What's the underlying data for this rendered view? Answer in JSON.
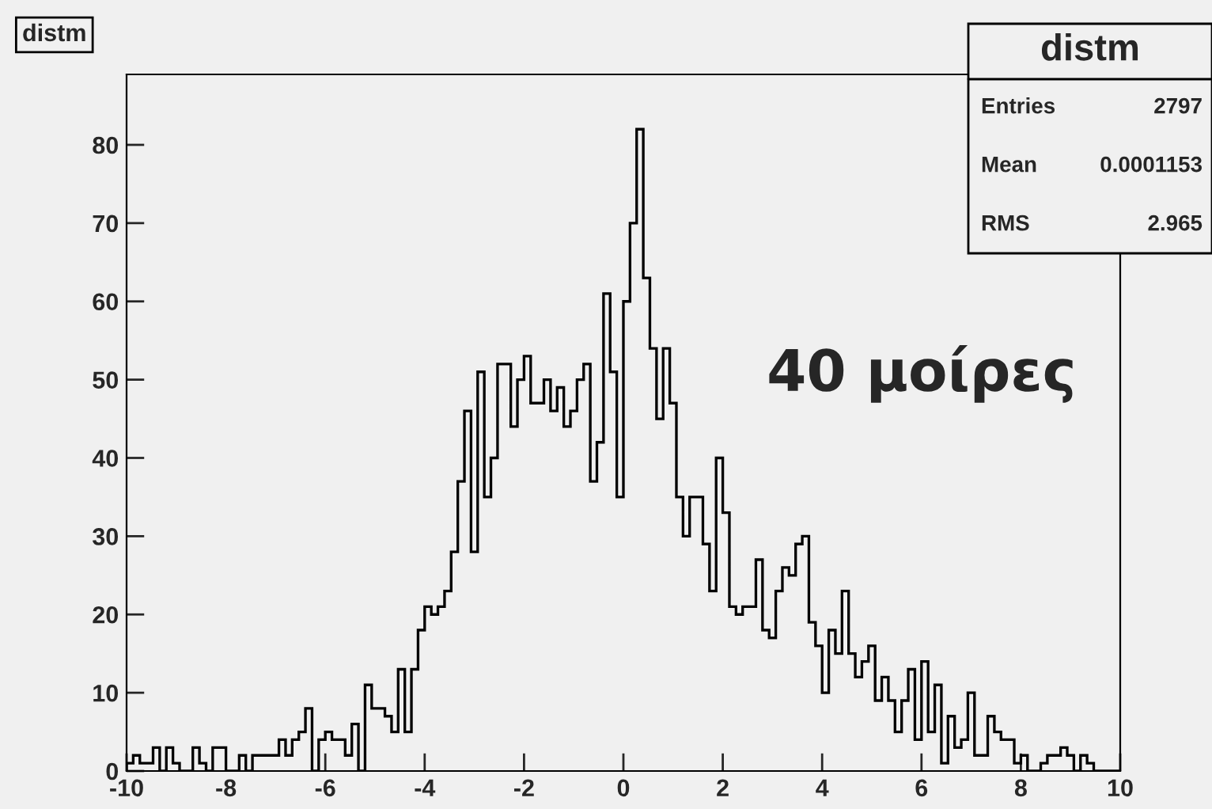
{
  "chart_data": {
    "type": "histogram",
    "title": "distm",
    "bins": [
      -10,
      -9.8667,
      -9.7333,
      -9.6,
      -9.4667,
      -9.3333,
      -9.2,
      -9.0667,
      -8.9333,
      -8.8,
      -8.6667,
      -8.5333,
      -8.4,
      -8.2667,
      -8.1333,
      -8,
      -7.8667,
      -7.7333,
      -7.6,
      -7.4667,
      -7.3333,
      -7.2,
      -7.0667,
      -6.9333,
      -6.8,
      -6.6667,
      -6.5333,
      -6.4,
      -6.2667,
      -6.1333,
      -6,
      -5.8667,
      -5.7333,
      -5.6,
      -5.4667,
      -5.3333,
      -5.2,
      -5.0667,
      -4.9333,
      -4.8,
      -4.6667,
      -4.5333,
      -4.4,
      -4.2667,
      -4.1333,
      -4,
      -3.8667,
      -3.7333,
      -3.6,
      -3.4667,
      -3.3333,
      -3.2,
      -3.0667,
      -2.9333,
      -2.8,
      -2.6667,
      -2.5333,
      -2.4,
      -2.2667,
      -2.1333,
      -2,
      -1.8667,
      -1.7333,
      -1.6,
      -1.4667,
      -1.3333,
      -1.2,
      -1.0667,
      -0.9333,
      -0.8,
      -0.6667,
      -0.5333,
      -0.4,
      -0.2667,
      -0.1333,
      0,
      0.1333,
      0.2667,
      0.4,
      0.5333,
      0.6667,
      0.8,
      0.9333,
      1.0667,
      1.2,
      1.3333,
      1.4667,
      1.6,
      1.7333,
      1.8667,
      2,
      2.1333,
      2.2667,
      2.4,
      2.5333,
      2.6667,
      2.8,
      2.9333,
      3.0667,
      3.2,
      3.3333,
      3.4667,
      3.6,
      3.7333,
      3.8667,
      4,
      4.1333,
      4.2667,
      4.4,
      4.5333,
      4.6667,
      4.8,
      4.9333,
      5.0667,
      5.2,
      5.3333,
      5.4667,
      5.6,
      5.7333,
      5.8667,
      6,
      6.1333,
      6.2667,
      6.4,
      6.5333,
      6.6667,
      6.8,
      6.9333,
      7.0667,
      7.2,
      7.3333,
      7.4667,
      7.6,
      7.7333,
      7.8667,
      8,
      8.1333,
      8.2667,
      8.4,
      8.5333,
      8.6667,
      8.8,
      8.9333,
      9.0667,
      9.2,
      9.3333,
      9.4667,
      9.6,
      9.7333,
      9.8667,
      10
    ],
    "values": [
      1,
      2,
      1,
      1,
      3,
      0,
      3,
      1,
      0,
      0,
      3,
      1,
      0,
      3,
      3,
      0,
      0,
      2,
      0,
      2,
      2,
      2,
      2,
      4,
      2,
      4,
      5,
      8,
      0,
      4,
      5,
      4,
      4,
      2,
      6,
      0,
      11,
      8,
      8,
      7,
      5,
      13,
      5,
      13,
      18,
      21,
      20,
      21,
      23,
      28,
      37,
      46,
      28,
      51,
      35,
      40,
      52,
      52,
      44,
      50,
      53,
      47,
      47,
      50,
      46,
      49,
      44,
      46,
      50,
      52,
      37,
      42,
      61,
      51,
      35,
      60,
      70,
      82,
      63,
      54,
      45,
      54,
      47,
      35,
      30,
      35,
      35,
      29,
      23,
      40,
      33,
      21,
      20,
      21,
      21,
      27,
      18,
      17,
      23,
      26,
      25,
      29,
      30,
      19,
      16,
      10,
      18,
      15,
      23,
      15,
      12,
      14,
      16,
      9,
      12,
      9,
      5,
      9,
      13,
      4,
      14,
      5,
      11,
      1,
      7,
      3,
      4,
      10,
      2,
      2,
      7,
      5,
      4,
      4,
      1,
      2,
      0,
      0,
      1,
      2,
      2,
      3,
      2,
      0,
      2,
      1,
      0,
      0,
      0,
      0
    ],
    "color": "#000000",
    "xlim": [
      -10,
      10
    ],
    "xticks": [
      -10,
      -8,
      -6,
      -4,
      -2,
      0,
      2,
      4,
      6,
      8,
      10
    ],
    "ylim": [
      0,
      89
    ],
    "yticks": [
      0,
      10,
      20,
      30,
      40,
      50,
      60,
      70,
      80
    ],
    "annotations": [
      "distm",
      "Entries",
      "2797",
      "Mean",
      "0.0001153",
      "RMS",
      "2.965",
      "40 μοίρες"
    ]
  }
}
